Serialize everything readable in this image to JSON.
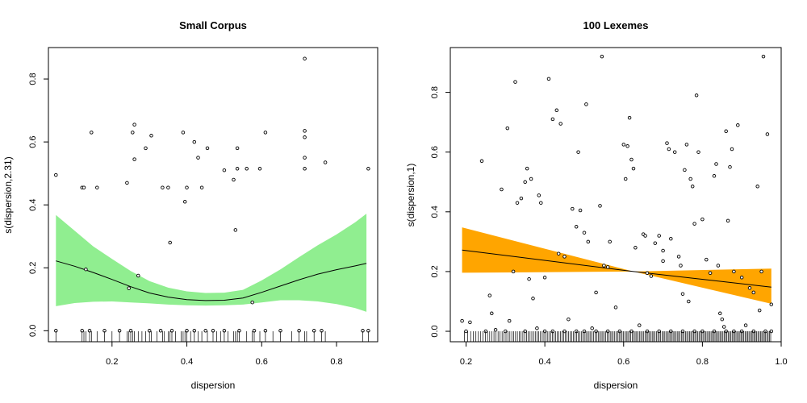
{
  "chart_data": [
    {
      "type": "scatter",
      "title": "Small Corpus",
      "xlabel": "dispersion",
      "ylabel": "s(dispersion,2.31)",
      "xlim": [
        0.03,
        0.91
      ],
      "ylim": [
        -0.035,
        0.9
      ],
      "xticks": [
        "0.2",
        "0.4",
        "0.6",
        "0.8"
      ],
      "yticks": [
        "0.0",
        "0.2",
        "0.4",
        "0.6",
        "0.8"
      ],
      "band_color": "#90EE90",
      "smooth": {
        "x": [
          0.05,
          0.1,
          0.15,
          0.2,
          0.25,
          0.3,
          0.35,
          0.4,
          0.45,
          0.5,
          0.55,
          0.6,
          0.65,
          0.7,
          0.75,
          0.8,
          0.85,
          0.88
        ],
        "fit": [
          0.222,
          0.205,
          0.185,
          0.163,
          0.14,
          0.12,
          0.107,
          0.099,
          0.096,
          0.097,
          0.104,
          0.122,
          0.142,
          0.162,
          0.18,
          0.194,
          0.206,
          0.214
        ],
        "lower": [
          0.078,
          0.088,
          0.092,
          0.093,
          0.09,
          0.087,
          0.083,
          0.081,
          0.08,
          0.081,
          0.083,
          0.09,
          0.097,
          0.097,
          0.093,
          0.085,
          0.072,
          0.06
        ],
        "upper": [
          0.368,
          0.318,
          0.268,
          0.228,
          0.19,
          0.158,
          0.137,
          0.125,
          0.12,
          0.121,
          0.13,
          0.16,
          0.195,
          0.234,
          0.272,
          0.306,
          0.345,
          0.372
        ]
      },
      "points": [
        [
          0.05,
          0.495
        ],
        [
          0.05,
          0.0
        ],
        [
          0.12,
          0.455
        ],
        [
          0.125,
          0.455
        ],
        [
          0.13,
          0.195
        ],
        [
          0.145,
          0.63
        ],
        [
          0.16,
          0.455
        ],
        [
          0.24,
          0.47
        ],
        [
          0.245,
          0.135
        ],
        [
          0.255,
          0.63
        ],
        [
          0.26,
          0.655
        ],
        [
          0.26,
          0.545
        ],
        [
          0.27,
          0.175
        ],
        [
          0.29,
          0.58
        ],
        [
          0.305,
          0.62
        ],
        [
          0.335,
          0.455
        ],
        [
          0.35,
          0.455
        ],
        [
          0.355,
          0.28
        ],
        [
          0.39,
          0.63
        ],
        [
          0.395,
          0.41
        ],
        [
          0.4,
          0.455
        ],
        [
          0.42,
          0.6
        ],
        [
          0.43,
          0.55
        ],
        [
          0.44,
          0.455
        ],
        [
          0.455,
          0.58
        ],
        [
          0.5,
          0.51
        ],
        [
          0.525,
          0.48
        ],
        [
          0.53,
          0.32
        ],
        [
          0.535,
          0.515
        ],
        [
          0.535,
          0.58
        ],
        [
          0.56,
          0.515
        ],
        [
          0.575,
          0.09
        ],
        [
          0.595,
          0.515
        ],
        [
          0.61,
          0.63
        ],
        [
          0.715,
          0.865
        ],
        [
          0.715,
          0.635
        ],
        [
          0.715,
          0.615
        ],
        [
          0.715,
          0.55
        ],
        [
          0.715,
          0.515
        ],
        [
          0.77,
          0.535
        ],
        [
          0.885,
          0.515
        ],
        [
          0.12,
          0.0
        ],
        [
          0.14,
          0.0
        ],
        [
          0.18,
          0.0
        ],
        [
          0.22,
          0.0
        ],
        [
          0.25,
          0.0
        ],
        [
          0.3,
          0.0
        ],
        [
          0.33,
          0.0
        ],
        [
          0.36,
          0.0
        ],
        [
          0.4,
          0.0
        ],
        [
          0.42,
          0.0
        ],
        [
          0.45,
          0.0
        ],
        [
          0.47,
          0.0
        ],
        [
          0.5,
          0.0
        ],
        [
          0.54,
          0.0
        ],
        [
          0.58,
          0.0
        ],
        [
          0.61,
          0.0
        ],
        [
          0.65,
          0.0
        ],
        [
          0.7,
          0.0
        ],
        [
          0.74,
          0.0
        ],
        [
          0.76,
          0.0
        ],
        [
          0.87,
          0.0
        ],
        [
          0.885,
          0.0
        ]
      ],
      "rug": [
        0.05,
        0.12,
        0.125,
        0.13,
        0.14,
        0.145,
        0.16,
        0.18,
        0.2,
        0.22,
        0.24,
        0.245,
        0.25,
        0.255,
        0.26,
        0.27,
        0.28,
        0.29,
        0.3,
        0.305,
        0.32,
        0.335,
        0.34,
        0.35,
        0.355,
        0.36,
        0.37,
        0.385,
        0.39,
        0.395,
        0.4,
        0.41,
        0.42,
        0.43,
        0.44,
        0.455,
        0.47,
        0.48,
        0.49,
        0.5,
        0.51,
        0.525,
        0.53,
        0.535,
        0.54,
        0.56,
        0.575,
        0.58,
        0.595,
        0.61,
        0.63,
        0.65,
        0.68,
        0.7,
        0.715,
        0.72,
        0.74,
        0.76,
        0.77,
        0.87,
        0.885
      ]
    },
    {
      "type": "scatter",
      "title": "100 Lexemes",
      "xlabel": "dispersion",
      "ylabel": "s(dispersion,1)",
      "xlim": [
        0.16,
        1.0
      ],
      "ylim": [
        -0.035,
        0.95
      ],
      "xticks": [
        "0.2",
        "0.4",
        "0.6",
        "0.8",
        "1.0"
      ],
      "yticks": [
        "0.0",
        "0.2",
        "0.4",
        "0.6",
        "0.8"
      ],
      "band_color": "#FFA500",
      "smooth": {
        "x": [
          0.19,
          0.625,
          0.975
        ],
        "fit": [
          0.272,
          0.2,
          0.148
        ],
        "lower": [
          0.196,
          0.2,
          0.092
        ],
        "upper": [
          0.348,
          0.2,
          0.21
        ]
      },
      "points": [
        [
          0.19,
          0.035
        ],
        [
          0.21,
          0.03
        ],
        [
          0.24,
          0.57
        ],
        [
          0.26,
          0.12
        ],
        [
          0.265,
          0.06
        ],
        [
          0.275,
          0.005
        ],
        [
          0.29,
          0.475
        ],
        [
          0.305,
          0.68
        ],
        [
          0.31,
          0.035
        ],
        [
          0.32,
          0.2
        ],
        [
          0.325,
          0.835
        ],
        [
          0.33,
          0.43
        ],
        [
          0.34,
          0.445
        ],
        [
          0.35,
          0.5
        ],
        [
          0.355,
          0.545
        ],
        [
          0.36,
          0.175
        ],
        [
          0.365,
          0.51
        ],
        [
          0.37,
          0.11
        ],
        [
          0.38,
          0.01
        ],
        [
          0.385,
          0.455
        ],
        [
          0.39,
          0.43
        ],
        [
          0.4,
          0.18
        ],
        [
          0.41,
          0.845
        ],
        [
          0.42,
          0.71
        ],
        [
          0.43,
          0.74
        ],
        [
          0.435,
          0.26
        ],
        [
          0.44,
          0.695
        ],
        [
          0.45,
          0.25
        ],
        [
          0.46,
          0.04
        ],
        [
          0.47,
          0.41
        ],
        [
          0.48,
          0.35
        ],
        [
          0.485,
          0.6
        ],
        [
          0.49,
          0.405
        ],
        [
          0.5,
          0.33
        ],
        [
          0.505,
          0.76
        ],
        [
          0.51,
          0.3
        ],
        [
          0.52,
          0.01
        ],
        [
          0.53,
          0.13
        ],
        [
          0.54,
          0.42
        ],
        [
          0.545,
          0.92
        ],
        [
          0.55,
          0.22
        ],
        [
          0.56,
          0.215
        ],
        [
          0.565,
          0.3
        ],
        [
          0.58,
          0.08
        ],
        [
          0.6,
          0.625
        ],
        [
          0.605,
          0.51
        ],
        [
          0.61,
          0.62
        ],
        [
          0.615,
          0.715
        ],
        [
          0.62,
          0.575
        ],
        [
          0.625,
          0.545
        ],
        [
          0.63,
          0.28
        ],
        [
          0.64,
          0.02
        ],
        [
          0.65,
          0.325
        ],
        [
          0.655,
          0.32
        ],
        [
          0.66,
          0.195
        ],
        [
          0.67,
          0.185
        ],
        [
          0.68,
          0.295
        ],
        [
          0.69,
          0.32
        ],
        [
          0.7,
          0.27
        ],
        [
          0.7,
          0.235
        ],
        [
          0.71,
          0.63
        ],
        [
          0.715,
          0.61
        ],
        [
          0.72,
          0.31
        ],
        [
          0.73,
          0.6
        ],
        [
          0.74,
          0.25
        ],
        [
          0.745,
          0.22
        ],
        [
          0.75,
          0.125
        ],
        [
          0.755,
          0.54
        ],
        [
          0.76,
          0.625
        ],
        [
          0.765,
          0.1
        ],
        [
          0.77,
          0.51
        ],
        [
          0.775,
          0.485
        ],
        [
          0.78,
          0.36
        ],
        [
          0.785,
          0.79
        ],
        [
          0.79,
          0.6
        ],
        [
          0.8,
          0.375
        ],
        [
          0.81,
          0.24
        ],
        [
          0.82,
          0.195
        ],
        [
          0.83,
          0.52
        ],
        [
          0.835,
          0.56
        ],
        [
          0.84,
          0.22
        ],
        [
          0.845,
          0.06
        ],
        [
          0.85,
          0.04
        ],
        [
          0.855,
          0.015
        ],
        [
          0.86,
          0.67
        ],
        [
          0.865,
          0.37
        ],
        [
          0.87,
          0.55
        ],
        [
          0.875,
          0.61
        ],
        [
          0.88,
          0.2
        ],
        [
          0.89,
          0.69
        ],
        [
          0.9,
          0.18
        ],
        [
          0.91,
          0.02
        ],
        [
          0.92,
          0.145
        ],
        [
          0.93,
          0.13
        ],
        [
          0.94,
          0.485
        ],
        [
          0.945,
          0.07
        ],
        [
          0.95,
          0.2
        ],
        [
          0.955,
          0.92
        ],
        [
          0.965,
          0.66
        ],
        [
          0.975,
          0.09
        ],
        [
          0.2,
          0.0
        ],
        [
          0.25,
          0.0
        ],
        [
          0.3,
          0.0
        ],
        [
          0.35,
          0.0
        ],
        [
          0.4,
          0.0
        ],
        [
          0.42,
          0.0
        ],
        [
          0.45,
          0.0
        ],
        [
          0.48,
          0.0
        ],
        [
          0.5,
          0.0
        ],
        [
          0.53,
          0.0
        ],
        [
          0.56,
          0.0
        ],
        [
          0.59,
          0.0
        ],
        [
          0.62,
          0.0
        ],
        [
          0.66,
          0.0
        ],
        [
          0.69,
          0.0
        ],
        [
          0.72,
          0.0
        ],
        [
          0.75,
          0.0
        ],
        [
          0.78,
          0.0
        ],
        [
          0.8,
          0.0
        ],
        [
          0.83,
          0.0
        ],
        [
          0.86,
          0.0
        ],
        [
          0.88,
          0.0
        ],
        [
          0.9,
          0.0
        ],
        [
          0.93,
          0.0
        ],
        [
          0.96,
          0.0
        ],
        [
          0.975,
          0.0
        ]
      ],
      "rug_range": [
        0.19,
        0.975
      ],
      "rug_count": 200
    }
  ]
}
